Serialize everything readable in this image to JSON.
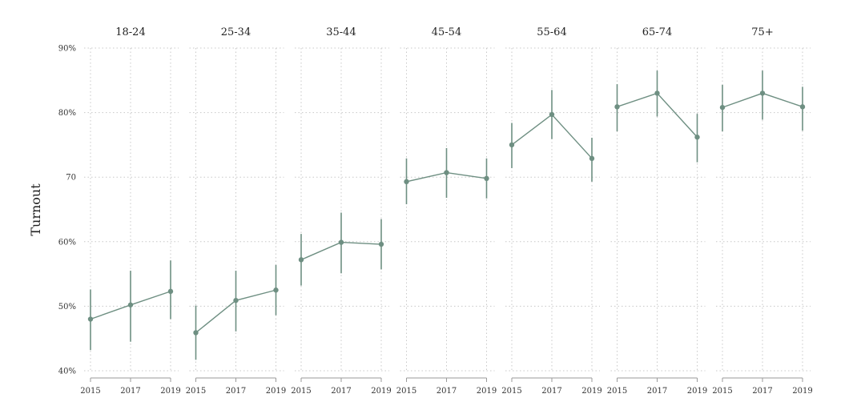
{
  "chart_data": {
    "type": "line",
    "ylabel": "Turnout",
    "ylim": [
      40,
      90
    ],
    "yticks": [
      {
        "value": 40,
        "label": "40%"
      },
      {
        "value": 50,
        "label": "50%"
      },
      {
        "value": 60,
        "label": "60%"
      },
      {
        "value": 70,
        "label": "70"
      },
      {
        "value": 80,
        "label": "80%"
      },
      {
        "value": 90,
        "label": "90%"
      }
    ],
    "x": [
      "2015",
      "2017",
      "2019"
    ],
    "grid": true,
    "color": "#6e8f82",
    "panels": [
      {
        "title": "18-24",
        "values": [
          48.0,
          50.2,
          52.3
        ],
        "ci_low": [
          43.2,
          44.5,
          48.0
        ],
        "ci_high": [
          52.6,
          55.5,
          57.1
        ]
      },
      {
        "title": "25-34",
        "values": [
          45.9,
          50.9,
          52.5
        ],
        "ci_low": [
          41.7,
          46.1,
          48.6
        ],
        "ci_high": [
          50.1,
          55.5,
          56.4
        ]
      },
      {
        "title": "35-44",
        "values": [
          57.2,
          59.9,
          59.6
        ],
        "ci_low": [
          53.2,
          55.1,
          55.7
        ],
        "ci_high": [
          61.2,
          64.5,
          63.5
        ]
      },
      {
        "title": "45-54",
        "values": [
          69.3,
          70.7,
          69.8
        ],
        "ci_low": [
          65.8,
          66.8,
          66.7
        ],
        "ci_high": [
          72.9,
          74.5,
          72.9
        ]
      },
      {
        "title": "55-64",
        "values": [
          75.0,
          79.7,
          72.9
        ],
        "ci_low": [
          71.4,
          75.9,
          69.3
        ],
        "ci_high": [
          78.4,
          83.5,
          76.1
        ]
      },
      {
        "title": "65-74",
        "values": [
          80.9,
          83.0,
          76.2
        ],
        "ci_low": [
          77.1,
          79.4,
          72.3
        ],
        "ci_high": [
          84.4,
          86.5,
          79.8
        ]
      },
      {
        "title": "75+",
        "values": [
          80.8,
          83.0,
          80.9
        ],
        "ci_low": [
          77.1,
          78.9,
          77.2
        ],
        "ci_high": [
          84.3,
          86.5,
          84.0
        ]
      }
    ]
  }
}
